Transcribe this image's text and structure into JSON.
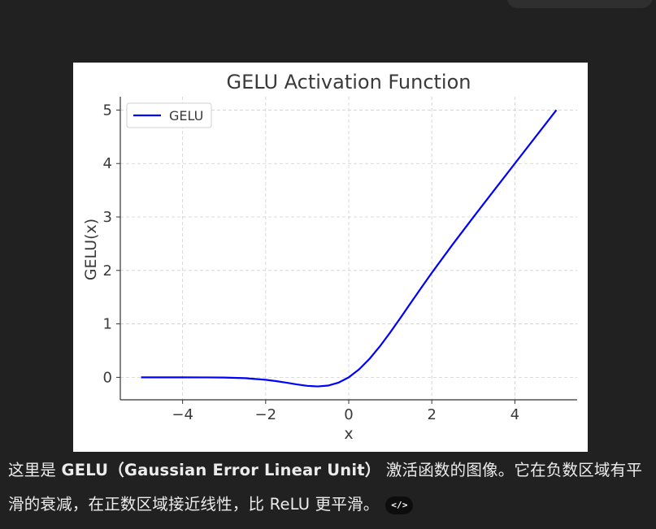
{
  "message": {
    "prefix": "这里是 ",
    "bold": "GELU（Gaussian Error Linear Unit）",
    "suffix": " 激活函数的图像。它在负数区域有平滑的衰减，在正数区域接近线性，比 ReLU 更平滑。",
    "code_button_icon": "code-icon",
    "code_button_glyph": "</>"
  },
  "chart_data": {
    "type": "line",
    "title": "GELU Activation Function",
    "xlabel": "x",
    "ylabel": "GELU(x)",
    "xlim": [
      -5.5,
      5.5
    ],
    "ylim": [
      -0.42,
      5.25
    ],
    "xticks": [
      -4,
      -2,
      0,
      2,
      4
    ],
    "xtick_labels": [
      "−4",
      "−2",
      "0",
      "2",
      "4"
    ],
    "yticks": [
      0,
      1,
      2,
      3,
      4,
      5
    ],
    "ytick_labels": [
      "0",
      "1",
      "2",
      "3",
      "4",
      "5"
    ],
    "grid": true,
    "legend_position": "top-left",
    "series": [
      {
        "name": "GELU",
        "color": "#0000ff",
        "x": [
          -5,
          -4.5,
          -4,
          -3.5,
          -3,
          -2.5,
          -2,
          -1.75,
          -1.5,
          -1.25,
          -1,
          -0.75,
          -0.5,
          -0.25,
          0,
          0.25,
          0.5,
          0.75,
          1,
          1.25,
          1.5,
          1.75,
          2,
          2.5,
          3,
          3.5,
          4,
          4.5,
          5
        ],
        "y": [
          0,
          0,
          -0.0001,
          -0.0008,
          -0.004,
          -0.0155,
          -0.0454,
          -0.0701,
          -0.1002,
          -0.1321,
          -0.1587,
          -0.17,
          -0.1543,
          -0.1003,
          0,
          0.1497,
          0.3457,
          0.58,
          0.8413,
          1.1179,
          1.3998,
          1.6799,
          1.9546,
          2.4845,
          2.996,
          3.4992,
          3.9999,
          4.5,
          5
        ]
      }
    ]
  }
}
